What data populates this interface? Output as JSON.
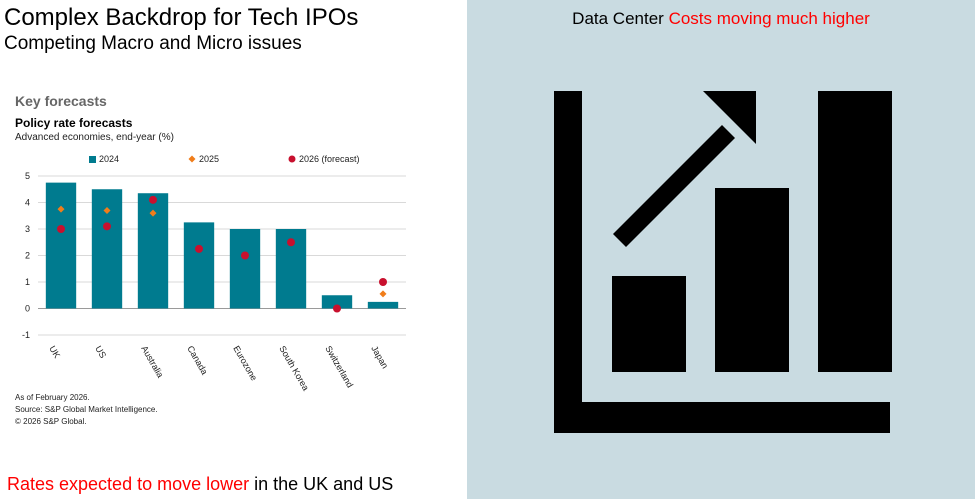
{
  "slide": {
    "title": "Complex Backdrop for Tech IPOs",
    "subtitle": "Competing Macro and Micro issues",
    "bottom_note_highlight": "Rates expected to move lower",
    "bottom_note_rest": " in the UK and US"
  },
  "right_panel": {
    "title_plain": "Data Center ",
    "title_highlight": "Costs moving much higher",
    "icon": "bar-chart-up-arrow-icon",
    "background": "#c9dbe1"
  },
  "chart_header": {
    "section": "Key forecasts",
    "title": "Policy rate forecasts",
    "subtitle": "Advanced economies, end-year (%)"
  },
  "footnotes": [
    "As of February 2026.",
    "Source: S&P Global Market Intelligence.",
    "© 2026 S&P Global."
  ],
  "colors": {
    "bar": "#007b8f",
    "diamond": "#f07d1a",
    "circle": "#c8102e",
    "highlight": "#ff0000"
  },
  "chart_data": {
    "type": "bar",
    "categories": [
      "UK",
      "US",
      "Australia",
      "Canada",
      "Eurozone",
      "South Korea",
      "Switzerland",
      "Japan"
    ],
    "series": [
      {
        "name": "2024",
        "kind": "bar",
        "values": [
          4.75,
          4.5,
          4.35,
          3.25,
          3.0,
          3.0,
          0.5,
          0.25
        ]
      },
      {
        "name": "2025",
        "kind": "diamond",
        "values": [
          3.75,
          3.7,
          3.6,
          null,
          null,
          null,
          null,
          0.55
        ]
      },
      {
        "name": "2026 (forecast)",
        "kind": "circle",
        "values": [
          3.0,
          3.1,
          4.1,
          2.25,
          2.0,
          2.5,
          0.0,
          1.0
        ]
      }
    ],
    "ylim": [
      -1,
      5
    ],
    "yticks": [
      -1,
      0,
      1,
      2,
      3,
      4,
      5
    ],
    "grid": true,
    "legend": "top"
  }
}
